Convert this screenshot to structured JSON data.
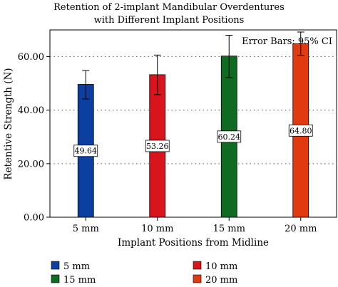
{
  "chart_data": {
    "type": "bar",
    "title": "Retention of 2-implant Mandibular Overdentures with Different Implant Positions",
    "title_lines": [
      "Retention of 2-implant Mandibular Overdentures",
      "with Different Implant Positions"
    ],
    "annotation": "Error Bars: 95% CI",
    "xlabel": "Implant Positions from Midline",
    "ylabel": "Retentive Strength (N)",
    "ylim": [
      0,
      70
    ],
    "yticks": [
      0,
      20,
      40,
      60
    ],
    "ytick_labels": [
      "0.00",
      "20.00",
      "40.00",
      "60.00"
    ],
    "grid": "horizontal-dotted",
    "legend_position": "bottom",
    "categories": [
      "5 mm",
      "10 mm",
      "15 mm",
      "20 mm"
    ],
    "values": [
      49.64,
      53.26,
      60.24,
      64.8
    ],
    "value_labels": [
      "49.64",
      "53.26",
      "60.24",
      "64.80"
    ],
    "error_low": [
      44.2,
      45.8,
      52.2,
      60.5
    ],
    "error_high": [
      54.8,
      60.6,
      68.0,
      69.2
    ],
    "colors": [
      "#0b3fa0",
      "#d9141c",
      "#0f6b22",
      "#e23a10"
    ],
    "legend": [
      {
        "label": "5 mm",
        "color": "#0b3fa0"
      },
      {
        "label": "10 mm",
        "color": "#d9141c"
      },
      {
        "label": "15 mm",
        "color": "#0f6b22"
      },
      {
        "label": "20 mm",
        "color": "#e23a10"
      }
    ]
  }
}
